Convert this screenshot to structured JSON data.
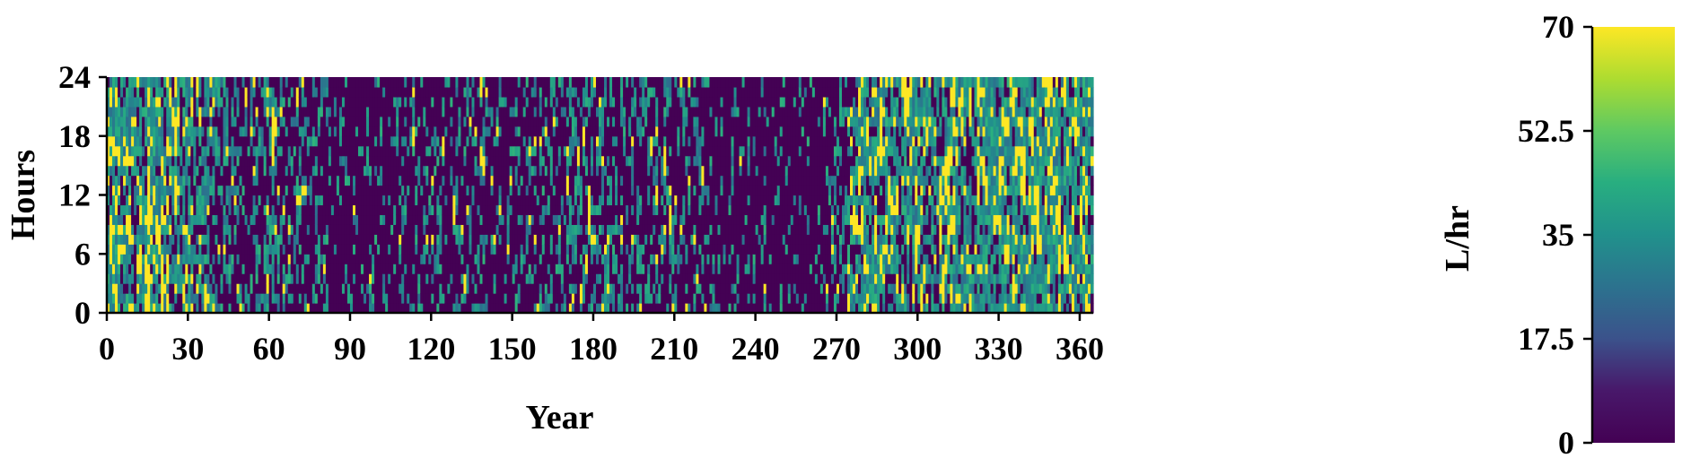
{
  "chart_data": {
    "type": "heatmap",
    "title": "",
    "xlabel": "Year",
    "ylabel": "Hours",
    "x_ticks": [
      "0",
      "30",
      "60",
      "90",
      "120",
      "150",
      "180",
      "210",
      "240",
      "270",
      "300",
      "330",
      "360"
    ],
    "y_ticks": [
      "0",
      "6",
      "12",
      "18",
      "24"
    ],
    "xlim": [
      0,
      365
    ],
    "ylim": [
      0,
      24
    ],
    "grid": false,
    "colorbar": {
      "label": "L/hr",
      "ticks": [
        "0",
        "17.5",
        "35",
        "52.5",
        "70"
      ],
      "range": [
        0,
        70
      ],
      "colormap": "viridis"
    },
    "colors": {
      "low": "#440154",
      "mid": "#21918c",
      "high": "#fde725"
    },
    "day_mean_profile": [
      {
        "day": 0,
        "level": 0.62
      },
      {
        "day": 30,
        "level": 0.55
      },
      {
        "day": 45,
        "level": 0.35
      },
      {
        "day": 60,
        "level": 0.4
      },
      {
        "day": 90,
        "level": 0.25
      },
      {
        "day": 120,
        "level": 0.3
      },
      {
        "day": 150,
        "level": 0.3
      },
      {
        "day": 180,
        "level": 0.4
      },
      {
        "day": 210,
        "level": 0.35
      },
      {
        "day": 230,
        "level": 0.25
      },
      {
        "day": 265,
        "level": 0.22
      },
      {
        "day": 280,
        "level": 0.6
      },
      {
        "day": 300,
        "level": 0.55
      },
      {
        "day": 320,
        "level": 0.62
      },
      {
        "day": 365,
        "level": 0.68
      }
    ]
  }
}
